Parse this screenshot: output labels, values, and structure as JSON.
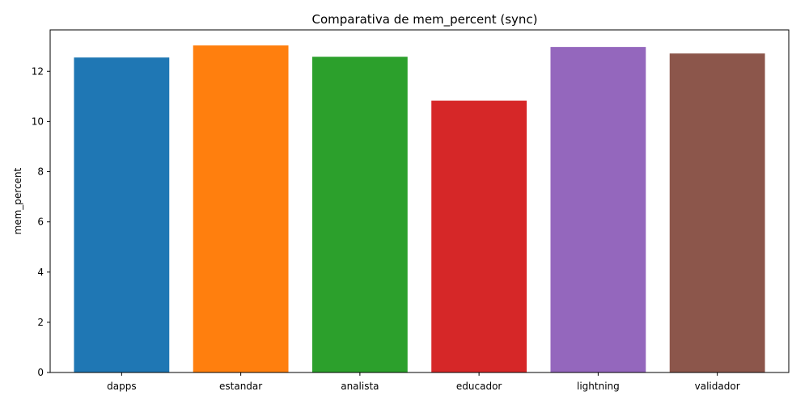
{
  "chart_data": {
    "type": "bar",
    "title": "Comparativa de mem_percent (sync)",
    "xlabel": "",
    "ylabel": "mem_percent",
    "categories": [
      "dapps",
      "estandar",
      "analista",
      "educador",
      "lightning",
      "validador"
    ],
    "values": [
      12.55,
      13.03,
      12.58,
      10.83,
      12.97,
      12.71
    ],
    "colors": [
      "#1f77b4",
      "#ff7f0e",
      "#2ca02c",
      "#d62728",
      "#9467bd",
      "#8c564b"
    ],
    "ylim": [
      0,
      13.65
    ],
    "yticks": [
      0,
      2,
      4,
      6,
      8,
      10,
      12
    ],
    "grid": false,
    "legend": "none"
  }
}
